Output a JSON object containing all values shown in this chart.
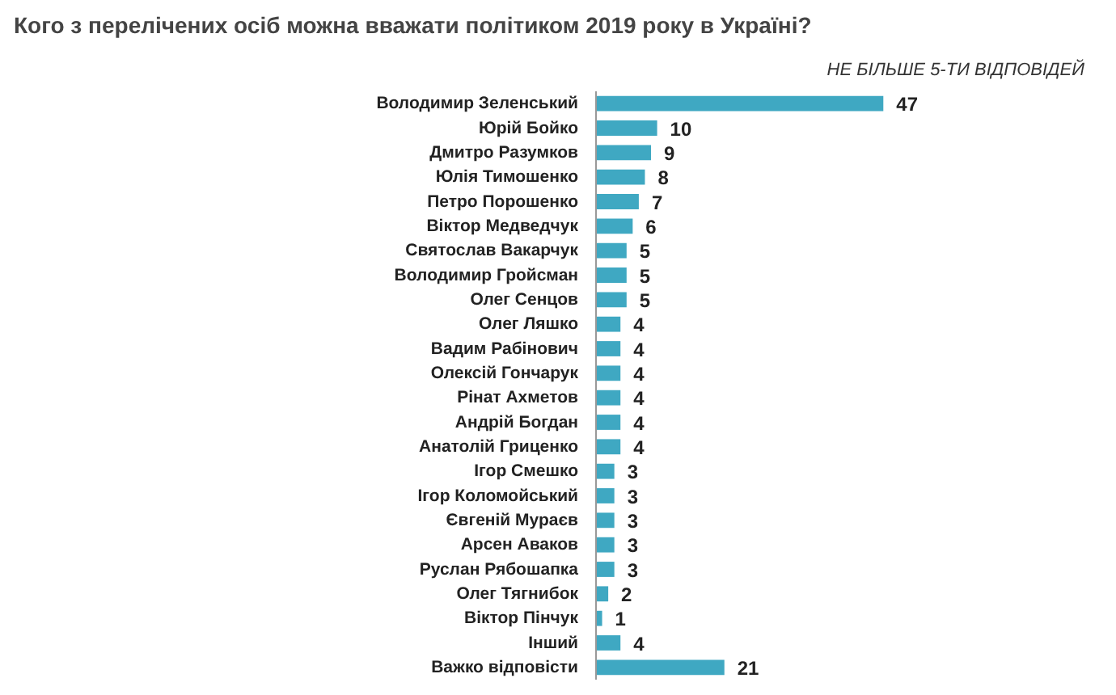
{
  "chart_data": {
    "type": "bar",
    "orientation": "horizontal",
    "title": "Кого з перелічених осіб можна вважати політиком 2019 року в Україні?",
    "subtitle": "НЕ БІЛЬШЕ 5-ТИ ВІДПОВІДЕЙ",
    "categories": [
      "Володимир Зеленський",
      "Юрій Бойко",
      "Дмитро Разумков",
      "Юлія Тимошенко",
      "Петро Порошенко",
      "Віктор Медведчук",
      "Святослав Вакарчук",
      "Володимир Гройсман",
      "Олег Сенцов",
      "Олег Ляшко",
      "Вадим Рабінович",
      "Олексій Гончарук",
      "Рінат Ахметов",
      "Андрій Богдан",
      "Анатолій Гриценко",
      "Ігор Смешко",
      "Ігор Коломойський",
      "Євгеній Мураєв",
      "Арсен Аваков",
      "Руслан Рябошапка",
      "Олег Тягнибок",
      "Віктор Пінчук",
      "Інший",
      "Важко відповісти"
    ],
    "values": [
      47,
      10,
      9,
      8,
      7,
      6,
      5,
      5,
      5,
      4,
      4,
      4,
      4,
      4,
      4,
      3,
      3,
      3,
      3,
      3,
      2,
      1,
      4,
      21
    ],
    "color": "#3fa8c2",
    "data_labels": true
  }
}
